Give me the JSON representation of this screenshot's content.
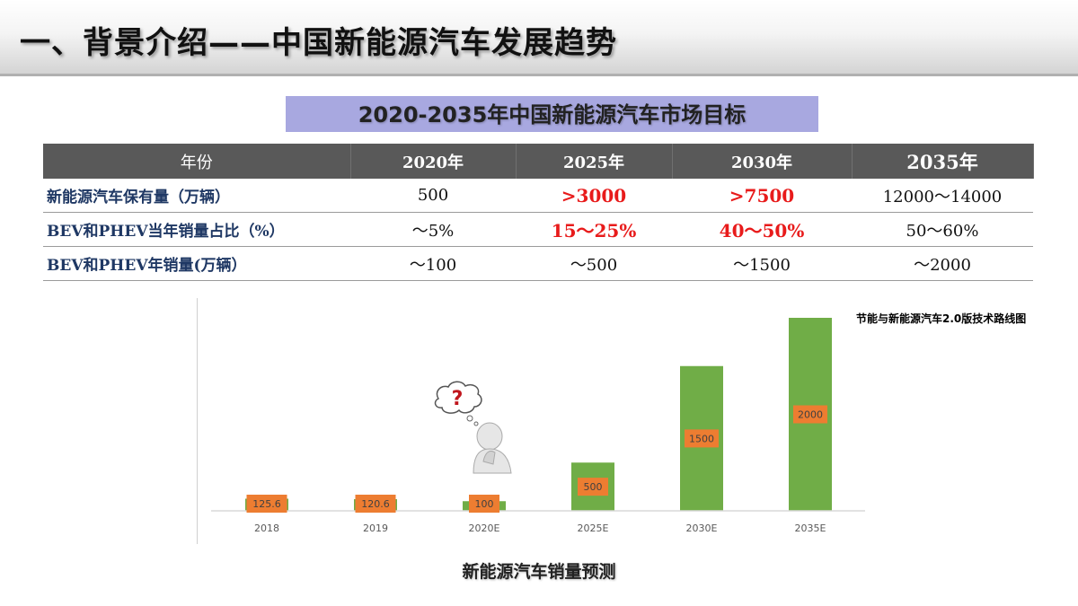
{
  "page": {
    "title": "一、背景介绍——中国新能源汽车发展趋势",
    "table_title": "2020-2035年中国新能源汽车市场目标",
    "chart_caption": "新能源汽车销量预测",
    "chart_source": "节能与新能源汽车2.0版技术路线图"
  },
  "table": {
    "headers": [
      "年份",
      "2020年",
      "2025年",
      "2030年",
      "2035年"
    ],
    "rows": [
      {
        "label": "新能源汽车保有量（万辆）",
        "cells": [
          "500",
          ">3000",
          ">7500",
          "12000～14000"
        ]
      },
      {
        "label": "BEV和PHEV当年销量占比（%）",
        "cells": [
          "～5%",
          "15～25%",
          "40～50%",
          "50～60%"
        ]
      },
      {
        "label": "BEV和PHEV年销量(万辆）",
        "cells": [
          "～100",
          "～500",
          "～1500",
          "～2000"
        ]
      }
    ]
  },
  "chart_data": {
    "type": "bar",
    "categories": [
      "2018",
      "2019",
      "2020E",
      "2025E",
      "2030E",
      "2035E"
    ],
    "values": [
      125.6,
      120.6,
      100,
      500,
      1500,
      2000
    ],
    "value_labels": [
      "125.6",
      "120.6",
      "100",
      "500",
      "1500",
      "2000"
    ],
    "ylim": [
      0,
      2000
    ],
    "grid": false,
    "legend": "none",
    "colors": {
      "bar": "#70ad47",
      "label_bg": "#ed7d31",
      "axis": "#d9d9d9",
      "tick_text": "#595959"
    }
  },
  "colors": {
    "highlight": "#e81b1b",
    "header_bg": "#595959",
    "title_band": "#a8a8e0",
    "row_label": "#1f3864"
  },
  "icons": {
    "thinking_figure": "thinking-person-icon",
    "question_mark": "question-mark-icon"
  }
}
